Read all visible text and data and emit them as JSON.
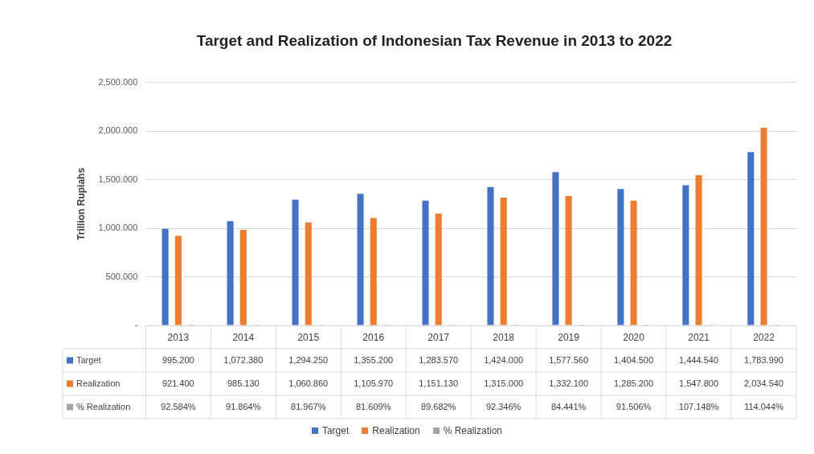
{
  "chart_data": {
    "type": "bar",
    "title": "Target and Realization of Indonesian Tax Revenue in 2013 to 2022",
    "ylabel": "Trillion Rupiahs",
    "categories": [
      "2013",
      "2014",
      "2015",
      "2016",
      "2017",
      "2018",
      "2019",
      "2020",
      "2021",
      "2022"
    ],
    "series": [
      {
        "name": "Target",
        "color": "#4472c4",
        "values": [
          995.2,
          1072.38,
          1294.25,
          1355.2,
          1283.57,
          1424.0,
          1577.56,
          1404.5,
          1444.54,
          1783.99
        ],
        "value_labels": [
          "995.200",
          "1,072.380",
          "1,294.250",
          "1,355.200",
          "1,283.570",
          "1,424.000",
          "1,577.560",
          "1,404.500",
          "1,444.540",
          "1,783.990"
        ]
      },
      {
        "name": "Realization",
        "color": "#ed7d31",
        "values": [
          921.4,
          985.13,
          1060.86,
          1105.97,
          1151.13,
          1315.0,
          1332.1,
          1285.2,
          1547.8,
          2034.54
        ],
        "value_labels": [
          "921.400",
          "985.130",
          "1,060.860",
          "1,105.970",
          "1,151.130",
          "1,315.000",
          "1,332.100",
          "1,285.200",
          "1,547.800",
          "2,034.540"
        ]
      },
      {
        "name": "% Realization",
        "color": "#a5a5a5",
        "values": [
          0.92584,
          0.91864,
          0.81967,
          0.81609,
          0.89682,
          0.92346,
          0.84441,
          0.91506,
          1.07148,
          1.14044
        ],
        "value_labels": [
          "92.584%",
          "91.864%",
          "81.967%",
          "81.609%",
          "89.682%",
          "92.346%",
          "84.441%",
          "91.506%",
          "107.148%",
          "114.044%"
        ]
      }
    ],
    "ylim": [
      0,
      2500
    ],
    "yticks": [
      {
        "value": 0,
        "label": "-"
      },
      {
        "value": 500,
        "label": "500.000"
      },
      {
        "value": 1000,
        "label": "1,000.000"
      },
      {
        "value": 1500,
        "label": "1,500.000"
      },
      {
        "value": 2000,
        "label": "2,000.000"
      },
      {
        "value": 2500,
        "label": "2,500.000"
      }
    ],
    "grid": "y",
    "legend": "bottom"
  }
}
